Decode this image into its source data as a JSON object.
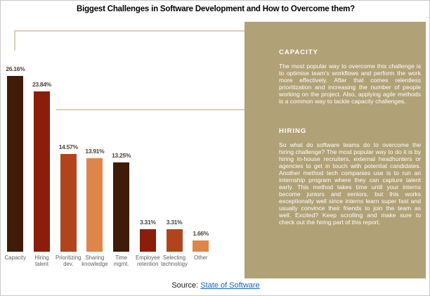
{
  "title": "Biggest Challenges in Software Development and How to Overcome them?",
  "colors": {
    "panel_background": "#b1a176",
    "connector_line": "#d9cfb6",
    "connector_line_on_panel": "#ffffff",
    "bullet": "#3a2b17",
    "value_label": "#4e4238",
    "category_label": "#5f5f5f",
    "link_blue": "#1762c4"
  },
  "chart_data": {
    "type": "bar",
    "title": "Biggest Challenges in Software Development and How to Overcome them?",
    "categories": [
      "Capacity",
      "Hiring\ntalent",
      "Prioritizing\ndev.",
      "Sharing\nknowledge",
      "Time\nmgmt.",
      "Employee\nretention",
      "Selecting\ntechnology",
      "Other"
    ],
    "values": [
      26.16,
      23.84,
      14.57,
      13.91,
      13.25,
      3.31,
      3.31,
      1.66
    ],
    "value_labels": [
      "26.16%",
      "23.84%",
      "14.57%",
      "13.91%",
      "13.25%",
      "3.31%",
      "3.31%",
      "1.66%"
    ],
    "bar_colors": [
      "#3f1c08",
      "#8a1e0a",
      "#b0451c",
      "#e0854a",
      "#3f1c08",
      "#8a1e0a",
      "#b0451c",
      "#e0854a"
    ],
    "xlabel": "",
    "ylabel": "",
    "ylim": [
      0,
      28
    ],
    "grid": false,
    "legend": false
  },
  "panel": {
    "sections": [
      {
        "heading": "CAPACITY",
        "body": "The most popular way to overcome this challenge is to optimise team's workflows and perform the work more effectively. After that comes relentless prioritization and increasing the number of people working on the project. Also, applying agile methods is a common way to tackle capacity challenges."
      },
      {
        "heading": "HIRING",
        "body": "So what do software teams do to overcome the hiring challenge? The most popular way to do it is by hiring in-house recruiters, external headhunters or agencies to get in touch with potential candidates. Another method tech companies use is to run an internship program where they can capture talent early. This method takes time until your interns become juniors and seniors, but this works exceptionally well since interns learn super fast and usually convince their friends to join the team as well. Excited? Keep scrolling and make sure to check out the hiring part of this report."
      }
    ]
  },
  "source": {
    "prefix": "Source: ",
    "link_text": "State of Software"
  }
}
